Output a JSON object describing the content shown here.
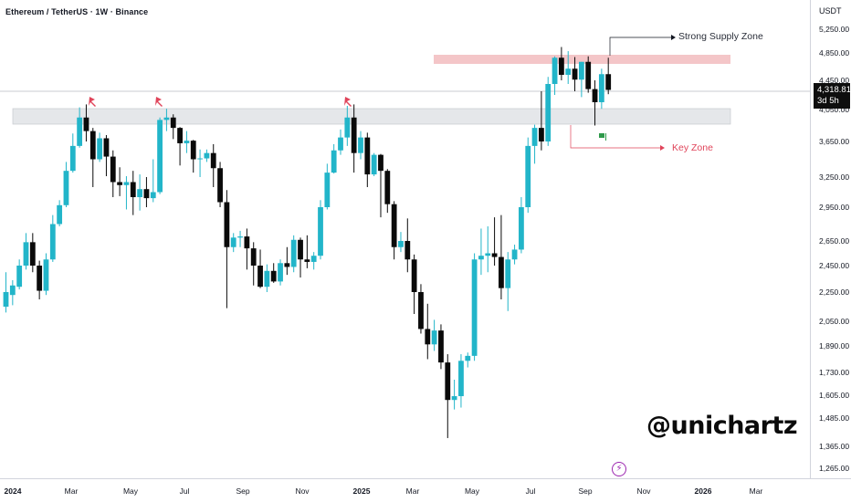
{
  "title": "Ethereum / TetherUS · 1W · Binance",
  "watermark": "@unichartz",
  "unit": "USDT",
  "last_price": "4,318.81",
  "countdown": "3d 5h",
  "annotations": {
    "supply_zone": "Strong Supply Zone",
    "key_zone": "Key Zone"
  },
  "colors": {
    "up": "#22b5c9",
    "down": "#0a0a0a",
    "supply_zone": "#f4c6c8",
    "key_zone": "#e5e7ea",
    "key_label": "#e0445a",
    "pin_red": "#e0445a",
    "pin_green": "#2e9a4a"
  },
  "chart_data": {
    "type": "candlestick",
    "title": "Ethereum / TetherUS · 1W · Binance",
    "x_ticks": [
      "2024",
      "Mar",
      "May",
      "Jul",
      "Sep",
      "Nov",
      "2025",
      "Mar",
      "May",
      "Jul",
      "Sep",
      "Nov",
      "2026",
      "Mar"
    ],
    "y_ticks": [
      "5,250.00",
      "4,850.00",
      "4,450.00",
      "4,050.00",
      "3,650.00",
      "3,250.00",
      "2,950.00",
      "2,650.00",
      "2,450.00",
      "2,250.00",
      "2,050.00",
      "1,890.00",
      "1,730.00",
      "1,605.00",
      "1,485.00",
      "1,365.00",
      "1,265.00"
    ],
    "y_range": [
      1225,
      5400
    ],
    "zones": [
      {
        "name": "Strong Supply Zone",
        "low": 4760,
        "high": 4870
      },
      {
        "name": "Key Zone",
        "low": 3890,
        "high": 4060
      }
    ],
    "current_price": 4318.81,
    "candles": [
      {
        "o": 2150,
        "h": 2400,
        "l": 2110,
        "c": 2250
      },
      {
        "o": 2230,
        "h": 2340,
        "l": 2160,
        "c": 2300
      },
      {
        "o": 2290,
        "h": 2500,
        "l": 2270,
        "c": 2450
      },
      {
        "o": 2450,
        "h": 2720,
        "l": 2420,
        "c": 2640
      },
      {
        "o": 2640,
        "h": 2720,
        "l": 2400,
        "c": 2450
      },
      {
        "o": 2450,
        "h": 2490,
        "l": 2200,
        "c": 2260
      },
      {
        "o": 2260,
        "h": 2550,
        "l": 2230,
        "c": 2500
      },
      {
        "o": 2500,
        "h": 2880,
        "l": 2480,
        "c": 2800
      },
      {
        "o": 2800,
        "h": 3020,
        "l": 2780,
        "c": 2970
      },
      {
        "o": 2970,
        "h": 3420,
        "l": 2950,
        "c": 3320
      },
      {
        "o": 3320,
        "h": 3750,
        "l": 3300,
        "c": 3600
      },
      {
        "o": 3600,
        "h": 4080,
        "l": 3580,
        "c": 3950
      },
      {
        "o": 3950,
        "h": 4120,
        "l": 3650,
        "c": 3780
      },
      {
        "o": 3780,
        "h": 3820,
        "l": 3150,
        "c": 3450
      },
      {
        "o": 3450,
        "h": 3760,
        "l": 3420,
        "c": 3690
      },
      {
        "o": 3690,
        "h": 3730,
        "l": 3260,
        "c": 3480
      },
      {
        "o": 3480,
        "h": 3550,
        "l": 3050,
        "c": 3200
      },
      {
        "o": 3200,
        "h": 3360,
        "l": 3060,
        "c": 3170
      },
      {
        "o": 3170,
        "h": 3260,
        "l": 2930,
        "c": 3200
      },
      {
        "o": 3200,
        "h": 3320,
        "l": 2880,
        "c": 3050
      },
      {
        "o": 3050,
        "h": 3280,
        "l": 2920,
        "c": 3130
      },
      {
        "o": 3130,
        "h": 3250,
        "l": 2950,
        "c": 3040
      },
      {
        "o": 3040,
        "h": 3450,
        "l": 3000,
        "c": 3100
      },
      {
        "o": 3100,
        "h": 3950,
        "l": 3080,
        "c": 3920
      },
      {
        "o": 3920,
        "h": 4060,
        "l": 3780,
        "c": 3950
      },
      {
        "o": 3950,
        "h": 3990,
        "l": 3680,
        "c": 3820
      },
      {
        "o": 3820,
        "h": 3830,
        "l": 3380,
        "c": 3630
      },
      {
        "o": 3630,
        "h": 3780,
        "l": 3520,
        "c": 3660
      },
      {
        "o": 3660,
        "h": 3670,
        "l": 3300,
        "c": 3450
      },
      {
        "o": 3450,
        "h": 3560,
        "l": 3250,
        "c": 3460
      },
      {
        "o": 3460,
        "h": 3560,
        "l": 3420,
        "c": 3520
      },
      {
        "o": 3520,
        "h": 3620,
        "l": 3150,
        "c": 3350
      },
      {
        "o": 3350,
        "h": 3420,
        "l": 2950,
        "c": 3000
      },
      {
        "o": 3000,
        "h": 3120,
        "l": 2140,
        "c": 2600
      },
      {
        "o": 2600,
        "h": 2720,
        "l": 2560,
        "c": 2680
      },
      {
        "o": 2680,
        "h": 2740,
        "l": 2600,
        "c": 2690
      },
      {
        "o": 2690,
        "h": 2760,
        "l": 2420,
        "c": 2590
      },
      {
        "o": 2590,
        "h": 2640,
        "l": 2300,
        "c": 2450
      },
      {
        "o": 2450,
        "h": 2580,
        "l": 2280,
        "c": 2290
      },
      {
        "o": 2290,
        "h": 2460,
        "l": 2250,
        "c": 2410
      },
      {
        "o": 2410,
        "h": 2470,
        "l": 2320,
        "c": 2330
      },
      {
        "o": 2330,
        "h": 2500,
        "l": 2300,
        "c": 2470
      },
      {
        "o": 2470,
        "h": 2600,
        "l": 2380,
        "c": 2440
      },
      {
        "o": 2440,
        "h": 2700,
        "l": 2400,
        "c": 2660
      },
      {
        "o": 2660,
        "h": 2680,
        "l": 2360,
        "c": 2500
      },
      {
        "o": 2500,
        "h": 2700,
        "l": 2430,
        "c": 2480
      },
      {
        "o": 2480,
        "h": 2560,
        "l": 2420,
        "c": 2530
      },
      {
        "o": 2530,
        "h": 3020,
        "l": 2500,
        "c": 2950
      },
      {
        "o": 2950,
        "h": 3400,
        "l": 2930,
        "c": 3300
      },
      {
        "o": 3300,
        "h": 3620,
        "l": 3290,
        "c": 3550
      },
      {
        "o": 3550,
        "h": 3800,
        "l": 3500,
        "c": 3700
      },
      {
        "o": 3700,
        "h": 4100,
        "l": 3600,
        "c": 3950
      },
      {
        "o": 3950,
        "h": 4120,
        "l": 3300,
        "c": 3520
      },
      {
        "o": 3520,
        "h": 3780,
        "l": 3450,
        "c": 3700
      },
      {
        "o": 3700,
        "h": 3760,
        "l": 3150,
        "c": 3280
      },
      {
        "o": 3280,
        "h": 3520,
        "l": 3260,
        "c": 3500
      },
      {
        "o": 3500,
        "h": 3510,
        "l": 2860,
        "c": 3320
      },
      {
        "o": 3320,
        "h": 3340,
        "l": 2900,
        "c": 2980
      },
      {
        "o": 2980,
        "h": 3010,
        "l": 2500,
        "c": 2600
      },
      {
        "o": 2600,
        "h": 2730,
        "l": 2560,
        "c": 2650
      },
      {
        "o": 2650,
        "h": 2850,
        "l": 2400,
        "c": 2500
      },
      {
        "o": 2500,
        "h": 2540,
        "l": 2100,
        "c": 2250
      },
      {
        "o": 2250,
        "h": 2310,
        "l": 1970,
        "c": 2000
      },
      {
        "o": 2000,
        "h": 2170,
        "l": 1810,
        "c": 1900
      },
      {
        "o": 1900,
        "h": 2060,
        "l": 1860,
        "c": 1990
      },
      {
        "o": 1990,
        "h": 2030,
        "l": 1750,
        "c": 1790
      },
      {
        "o": 1790,
        "h": 1840,
        "l": 1400,
        "c": 1580
      },
      {
        "o": 1580,
        "h": 1690,
        "l": 1530,
        "c": 1600
      },
      {
        "o": 1600,
        "h": 1840,
        "l": 1540,
        "c": 1800
      },
      {
        "o": 1800,
        "h": 1850,
        "l": 1760,
        "c": 1830
      },
      {
        "o": 1830,
        "h": 2550,
        "l": 1800,
        "c": 2500
      },
      {
        "o": 2500,
        "h": 2760,
        "l": 2380,
        "c": 2530
      },
      {
        "o": 2530,
        "h": 2780,
        "l": 2400,
        "c": 2550
      },
      {
        "o": 2550,
        "h": 2860,
        "l": 2450,
        "c": 2520
      },
      {
        "o": 2520,
        "h": 2880,
        "l": 2200,
        "c": 2280
      },
      {
        "o": 2280,
        "h": 2560,
        "l": 2120,
        "c": 2500
      },
      {
        "o": 2500,
        "h": 2620,
        "l": 2460,
        "c": 2580
      },
      {
        "o": 2580,
        "h": 3050,
        "l": 2550,
        "c": 2950
      },
      {
        "o": 2950,
        "h": 3700,
        "l": 2900,
        "c": 3600
      },
      {
        "o": 3600,
        "h": 3860,
        "l": 3400,
        "c": 3820
      },
      {
        "o": 3820,
        "h": 4300,
        "l": 3550,
        "c": 3650
      },
      {
        "o": 3650,
        "h": 4500,
        "l": 3600,
        "c": 4400
      },
      {
        "o": 4400,
        "h": 4800,
        "l": 4250,
        "c": 4780
      },
      {
        "o": 4780,
        "h": 4950,
        "l": 4450,
        "c": 4530
      },
      {
        "o": 4530,
        "h": 4880,
        "l": 4400,
        "c": 4620
      },
      {
        "o": 4620,
        "h": 4790,
        "l": 4300,
        "c": 4460
      },
      {
        "o": 4460,
        "h": 4720,
        "l": 4220,
        "c": 4720
      },
      {
        "o": 4720,
        "h": 4800,
        "l": 4280,
        "c": 4330
      },
      {
        "o": 4330,
        "h": 4450,
        "l": 3850,
        "c": 4150
      },
      {
        "o": 4150,
        "h": 4620,
        "l": 4060,
        "c": 4540
      },
      {
        "o": 4540,
        "h": 4780,
        "l": 4260,
        "c": 4318.81
      }
    ]
  }
}
